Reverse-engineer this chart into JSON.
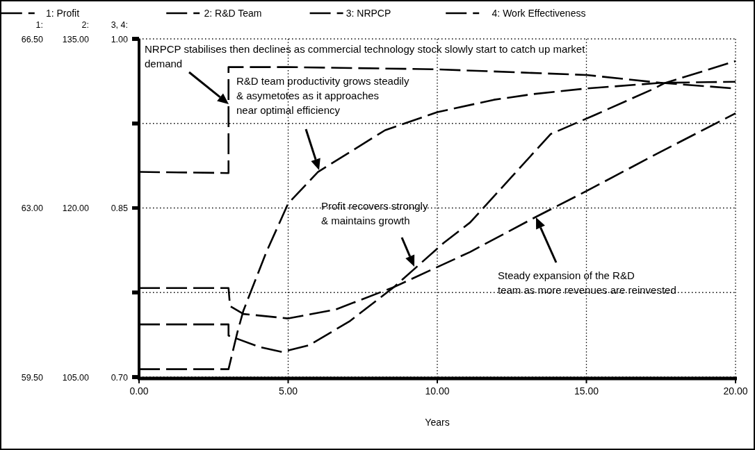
{
  "chart_data": {
    "type": "line",
    "xlabel": "Years",
    "xlim": [
      0,
      20
    ],
    "xticks": [
      {
        "value": 0,
        "label": "0.00"
      },
      {
        "value": 5,
        "label": "5.00"
      },
      {
        "value": 10,
        "label": "10.00"
      },
      {
        "value": 15,
        "label": "15.00"
      },
      {
        "value": 20,
        "label": "20.00"
      }
    ],
    "ylabel": "1:",
    "y2label": "2:",
    "y3label": "3, 4:",
    "ylim": [
      59.5,
      66.5
    ],
    "yticks": [
      {
        "value": 59.5,
        "label": "59.50"
      },
      {
        "value": 61.25,
        "label": null
      },
      {
        "value": 63,
        "label": "63.00"
      },
      {
        "value": 64.75,
        "label": null
      },
      {
        "value": 66.5,
        "label": "66.50"
      }
    ],
    "y2lim": [
      105,
      135
    ],
    "y2ticks": [
      {
        "value": 105,
        "label": "105.00"
      },
      {
        "value": 112.5,
        "label": null
      },
      {
        "value": 120,
        "label": "120.00"
      },
      {
        "value": 127.5,
        "label": null
      },
      {
        "value": 135,
        "label": "135.00"
      }
    ],
    "y3lim": [
      0.7,
      1.0
    ],
    "y3ticks": [
      {
        "value": 0.7,
        "label": "0.70"
      },
      {
        "value": 0.775,
        "label": null
      },
      {
        "value": 0.85,
        "label": "0.85"
      },
      {
        "value": 0.925,
        "label": null
      },
      {
        "value": 1.0,
        "label": "1.00"
      }
    ],
    "grid": true,
    "legend": "top",
    "line_style": "dashed",
    "series": [
      {
        "name": "1: Profit",
        "color": "#000000",
        "axis": "y",
        "x": [
          0,
          3,
          3,
          4.05,
          4.8,
          5.7,
          7.05,
          8.56,
          10.2,
          11.1,
          13.8,
          15.3,
          17.3,
          17.6,
          20
        ],
        "values": [
          60.59,
          60.59,
          60.36,
          60.12,
          60.02,
          60.16,
          60.65,
          61.37,
          62.27,
          62.7,
          64.53,
          64.93,
          65.48,
          65.58,
          66.04
        ]
      },
      {
        "name": "2: R&D Team",
        "color": "#000000",
        "axis": "y2",
        "x": [
          0,
          3,
          3.05,
          3.5,
          5,
          6.6,
          8.56,
          11.1,
          13.3,
          15,
          17.5,
          20
        ],
        "values": [
          112.9,
          112.9,
          111.3,
          110.6,
          110.2,
          111,
          113,
          116.1,
          119.2,
          121.5,
          125,
          128.4
        ]
      },
      {
        "name": "3: NRPCP",
        "color": "#000000",
        "axis": "y3",
        "x": [
          0,
          3,
          3,
          5,
          10,
          15,
          17.5,
          20
        ],
        "values": [
          0.882,
          0.881,
          0.975,
          0.975,
          0.973,
          0.968,
          0.961,
          0.956
        ]
      },
      {
        "name": "4: Work Effectiveness",
        "color": "#000000",
        "axis": "y3",
        "x": [
          0,
          3,
          3.3,
          3.5,
          4.27,
          5,
          6,
          8.25,
          10,
          11.9,
          13.2,
          15,
          17.5,
          20
        ],
        "values": [
          0.707,
          0.707,
          0.74,
          0.759,
          0.811,
          0.854,
          0.882,
          0.919,
          0.935,
          0.946,
          0.951,
          0.956,
          0.961,
          0.962
        ]
      }
    ],
    "annotations": [
      "NRPCP stabilises then declines as commercial technology stock slowly start to catch up market\ndemand",
      "R&D team productivity grows steadily\n& asymetotes as it approaches\nnear optimal efficiency",
      "Profit recovers strongly\n& maintains growth",
      "Steady expansion of the R&D\nteam as more revenues are reinvested"
    ]
  }
}
